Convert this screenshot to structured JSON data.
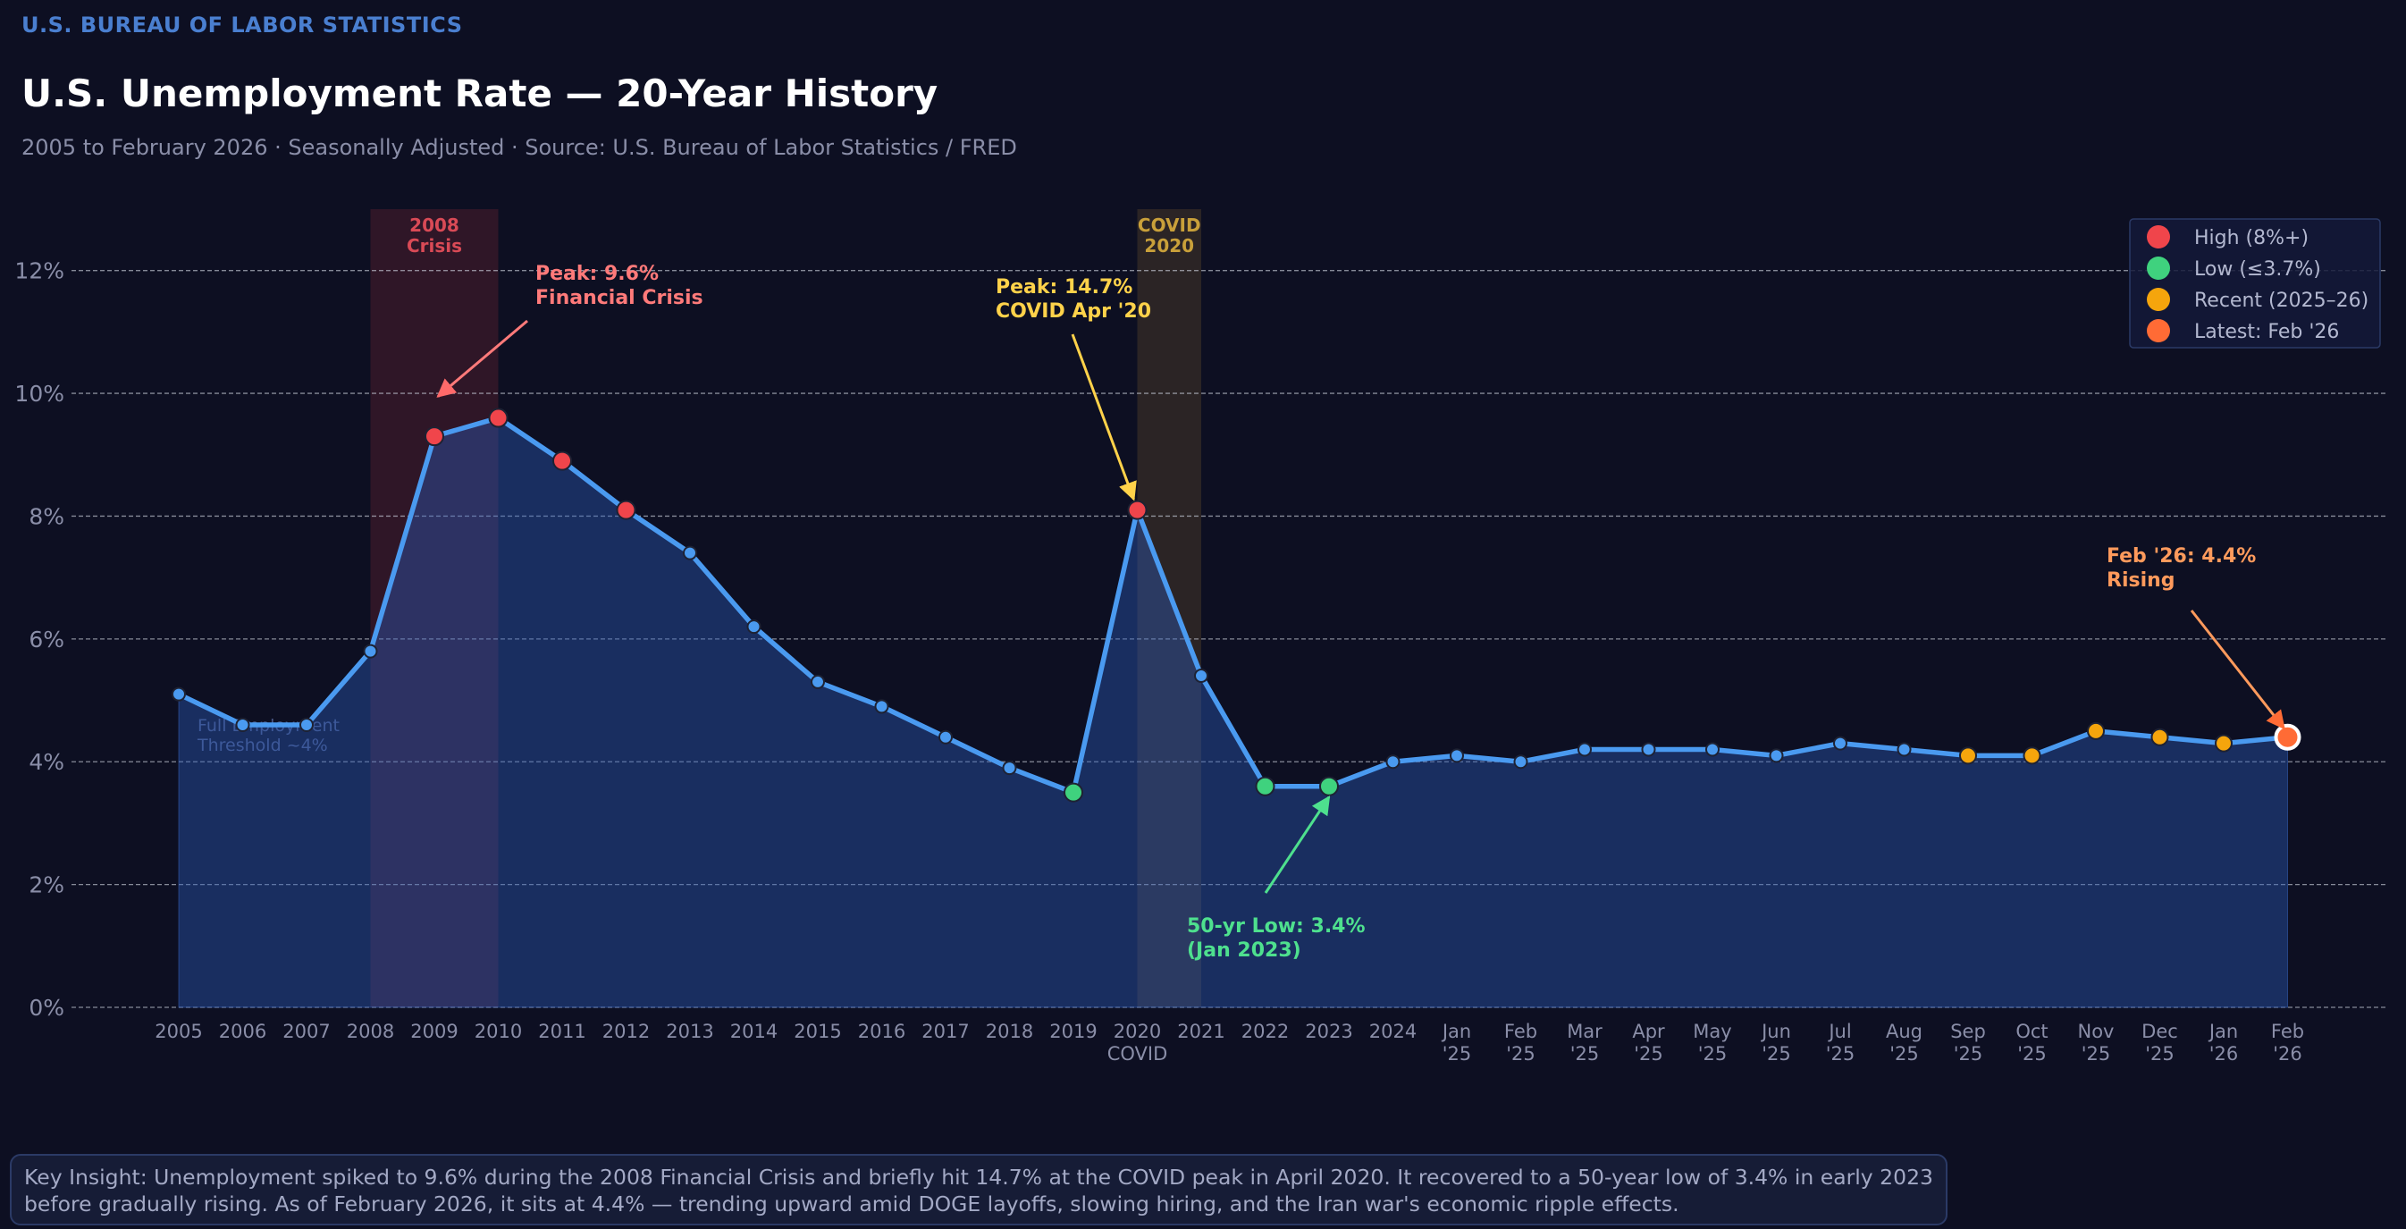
{
  "header": {
    "source_label": "U.S. BUREAU OF LABOR STATISTICS",
    "title": "U.S. Unemployment Rate — 20-Year History",
    "subtitle": "2005 to February 2026  ·  Seasonally Adjusted  ·  Source: U.S. Bureau of Labor Statistics / FRED"
  },
  "chart_data": {
    "type": "area",
    "ylim": [
      0,
      13
    ],
    "yticks": [
      0,
      2,
      4,
      6,
      8,
      10,
      12
    ],
    "ytick_labels": [
      "0%",
      "2%",
      "4%",
      "6%",
      "8%",
      "10%",
      "12%"
    ],
    "grid": true,
    "categories": [
      {
        "line1": "2005",
        "line2": ""
      },
      {
        "line1": "2006",
        "line2": ""
      },
      {
        "line1": "2007",
        "line2": ""
      },
      {
        "line1": "2008",
        "line2": ""
      },
      {
        "line1": "2009",
        "line2": ""
      },
      {
        "line1": "2010",
        "line2": ""
      },
      {
        "line1": "2011",
        "line2": ""
      },
      {
        "line1": "2012",
        "line2": ""
      },
      {
        "line1": "2013",
        "line2": ""
      },
      {
        "line1": "2014",
        "line2": ""
      },
      {
        "line1": "2015",
        "line2": ""
      },
      {
        "line1": "2016",
        "line2": ""
      },
      {
        "line1": "2017",
        "line2": ""
      },
      {
        "line1": "2018",
        "line2": ""
      },
      {
        "line1": "2019",
        "line2": ""
      },
      {
        "line1": "2020",
        "line2": "COVID"
      },
      {
        "line1": "2021",
        "line2": ""
      },
      {
        "line1": "2022",
        "line2": ""
      },
      {
        "line1": "2023",
        "line2": ""
      },
      {
        "line1": "2024",
        "line2": ""
      },
      {
        "line1": "Jan",
        "line2": "'25"
      },
      {
        "line1": "Feb",
        "line2": "'25"
      },
      {
        "line1": "Mar",
        "line2": "'25"
      },
      {
        "line1": "Apr",
        "line2": "'25"
      },
      {
        "line1": "May",
        "line2": "'25"
      },
      {
        "line1": "Jun",
        "line2": "'25"
      },
      {
        "line1": "Jul",
        "line2": "'25"
      },
      {
        "line1": "Aug",
        "line2": "'25"
      },
      {
        "line1": "Sep",
        "line2": "'25"
      },
      {
        "line1": "Oct",
        "line2": "'25"
      },
      {
        "line1": "Nov",
        "line2": "'25"
      },
      {
        "line1": "Dec",
        "line2": "'25"
      },
      {
        "line1": "Jan",
        "line2": "'26"
      },
      {
        "line1": "Feb",
        "line2": "'26"
      }
    ],
    "series": [
      {
        "name": "Unemployment Rate",
        "values": [
          5.1,
          4.6,
          4.6,
          5.8,
          9.3,
          9.6,
          8.9,
          8.1,
          7.4,
          6.2,
          5.3,
          4.9,
          4.4,
          3.9,
          3.5,
          8.1,
          5.4,
          3.6,
          3.6,
          4.0,
          4.1,
          4.0,
          4.2,
          4.2,
          4.2,
          4.1,
          4.3,
          4.2,
          4.1,
          4.1,
          4.5,
          4.4,
          4.3,
          4.4
        ],
        "point_groups": [
          "normal",
          "normal",
          "normal",
          "normal",
          "high",
          "high",
          "high",
          "high",
          "normal",
          "normal",
          "normal",
          "normal",
          "normal",
          "normal",
          "low",
          "high",
          "normal",
          "low",
          "low",
          "normal",
          "normal",
          "normal",
          "normal",
          "normal",
          "normal",
          "normal",
          "normal",
          "normal",
          "recent",
          "recent",
          "recent",
          "recent",
          "recent",
          "latest"
        ]
      }
    ],
    "colors": {
      "line": "#4a9af0",
      "normal": "#4a9af0",
      "high": "#f0454b",
      "low": "#3fd27e",
      "recent": "#f5a50c",
      "latest": "#ff6b35"
    },
    "shaded_regions": [
      {
        "label_line1": "2008",
        "label_line2": "Crisis",
        "from": 3,
        "to": 5,
        "color": "#f0454b",
        "label_color": "#d94a56"
      },
      {
        "label_line1": "COVID",
        "label_line2": "2020",
        "from": 15,
        "to": 16,
        "color": "#d4a03a",
        "label_color": "#c9a03a"
      }
    ],
    "reference": {
      "label_line1": "Full Employment",
      "label_line2": "Threshold ~4%",
      "value": 4
    },
    "annotations": [
      {
        "line1": "Peak: 9.6%",
        "line2": "Financial Crisis",
        "target_index": 4,
        "target_value": 9.6,
        "color": "#ff7a7a"
      },
      {
        "line1": "Peak: 14.7%",
        "line2": "COVID Apr '20",
        "target_index": 15,
        "target_value": 8.1,
        "color": "#ffd24a"
      },
      {
        "line1": "50-yr Low: 3.4%",
        "line2": "(Jan 2023)",
        "target_index": 18,
        "target_value": 3.6,
        "color": "#4ee08e"
      },
      {
        "line1": "Feb '26: 4.4%",
        "line2": "Rising",
        "target_index": 33,
        "target_value": 4.4,
        "color": "#ff9a5c"
      }
    ],
    "legend": {
      "position": "top-right",
      "items": [
        {
          "label": "High (8%+)",
          "color": "#f0454b"
        },
        {
          "label": "Low (≤3.7%)",
          "color": "#3fd27e"
        },
        {
          "label": "Recent (2025–26)",
          "color": "#f5a50c"
        },
        {
          "label": "Latest: Feb '26",
          "color": "#ff6b35"
        }
      ]
    }
  },
  "footer": {
    "insight_line1": "Key Insight: Unemployment spiked to 9.6% during the 2008 Financial Crisis and briefly hit 14.7% at the COVID peak in April 2020. It recovered to a 50-year low of 3.4% in early 2023",
    "insight_line2": "before gradually rising. As of February 2026, it sits at 4.4% — trending upward amid DOGE layoffs, slowing hiring, and the Iran war's economic ripple effects."
  }
}
